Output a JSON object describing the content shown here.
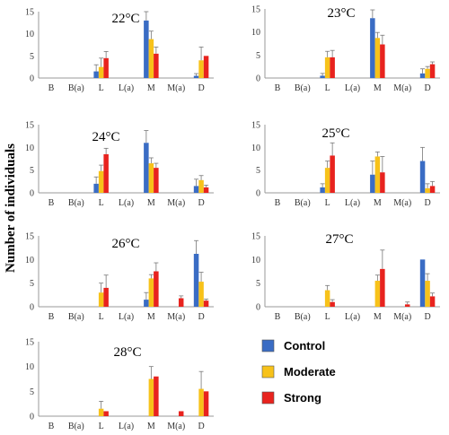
{
  "y_axis_label": "Number of individuals",
  "colors": {
    "Control": "#3a6cc4",
    "Moderate": "#f7c21a",
    "Strong": "#e8231e"
  },
  "chart_data": [
    {
      "type": "bar",
      "title": "22°C",
      "categories": [
        "B",
        "B(a)",
        "L",
        "L(a)",
        "M",
        "M(a)",
        "D"
      ],
      "y_ticks": [
        0,
        5,
        10,
        15
      ],
      "ylim": [
        0,
        15
      ],
      "series": [
        {
          "name": "Control",
          "values": [
            0,
            0,
            1.5,
            0,
            13,
            0,
            0.5
          ],
          "errors": [
            0,
            0,
            1.5,
            0,
            2,
            0,
            0.5
          ]
        },
        {
          "name": "Moderate",
          "values": [
            0,
            0,
            2.5,
            0,
            8.8,
            0,
            4
          ],
          "errors": [
            0,
            0,
            2,
            0,
            1.8,
            0,
            3
          ]
        },
        {
          "name": "Strong",
          "values": [
            0,
            0,
            4.5,
            0,
            5.5,
            0,
            5
          ],
          "errors": [
            0,
            0,
            1.5,
            0,
            1.5,
            0,
            0
          ]
        }
      ]
    },
    {
      "type": "bar",
      "title": "23°C",
      "categories": [
        "B",
        "B(a)",
        "L",
        "L(a)",
        "M",
        "M(a)",
        "D"
      ],
      "y_ticks": [
        0,
        5,
        10,
        15
      ],
      "ylim": [
        0,
        15
      ],
      "series": [
        {
          "name": "Control",
          "values": [
            0,
            0,
            0.5,
            0,
            13,
            0,
            1
          ],
          "errors": [
            0,
            0,
            0.5,
            0,
            1.8,
            0,
            1
          ]
        },
        {
          "name": "Moderate",
          "values": [
            0,
            0,
            4.5,
            0,
            8.7,
            0,
            2
          ],
          "errors": [
            0,
            0,
            1.3,
            0,
            1.2,
            0,
            0.5
          ]
        },
        {
          "name": "Strong",
          "values": [
            0,
            0,
            4.5,
            0,
            7.3,
            0,
            3
          ],
          "errors": [
            0,
            0,
            1.5,
            0,
            2,
            0,
            0.5
          ]
        }
      ]
    },
    {
      "type": "bar",
      "title": "24°C",
      "categories": [
        "B",
        "B(a)",
        "L",
        "L(a)",
        "M",
        "M(a)",
        "D"
      ],
      "y_ticks": [
        0,
        5,
        10,
        15
      ],
      "ylim": [
        0,
        15
      ],
      "series": [
        {
          "name": "Control",
          "values": [
            0,
            0,
            2,
            0,
            11,
            0,
            1.5
          ],
          "errors": [
            0,
            0,
            1.5,
            0,
            2.7,
            0,
            1.5
          ]
        },
        {
          "name": "Moderate",
          "values": [
            0,
            0,
            4.8,
            0,
            6.5,
            0,
            2.8
          ],
          "errors": [
            0,
            0,
            1.3,
            0,
            1.2,
            0,
            1
          ]
        },
        {
          "name": "Strong",
          "values": [
            0,
            0,
            8.5,
            0,
            5.5,
            0,
            1.2
          ],
          "errors": [
            0,
            0,
            1.3,
            0,
            1,
            0,
            0.5
          ]
        }
      ]
    },
    {
      "type": "bar",
      "title": "25°C",
      "categories": [
        "B",
        "B(a)",
        "L",
        "L(a)",
        "M",
        "M(a)",
        "D"
      ],
      "y_ticks": [
        0,
        5,
        10,
        15
      ],
      "ylim": [
        0,
        15
      ],
      "series": [
        {
          "name": "Control",
          "values": [
            0,
            0,
            1.2,
            0,
            4,
            0,
            7
          ],
          "errors": [
            0,
            0,
            0.8,
            0,
            3,
            0,
            3
          ]
        },
        {
          "name": "Moderate",
          "values": [
            0,
            0,
            5.5,
            0,
            8,
            0,
            1
          ],
          "errors": [
            0,
            0,
            1.5,
            0,
            1,
            0,
            1
          ]
        },
        {
          "name": "Strong",
          "values": [
            0,
            0,
            8.2,
            0,
            4.5,
            0,
            1.5
          ],
          "errors": [
            0,
            0,
            2.8,
            0,
            3.5,
            0,
            1
          ]
        }
      ]
    },
    {
      "type": "bar",
      "title": "26°C",
      "categories": [
        "B",
        "B(a)",
        "L",
        "L(a)",
        "M",
        "M(a)",
        "D"
      ],
      "y_ticks": [
        0,
        5,
        10,
        15
      ],
      "ylim": [
        0,
        15
      ],
      "series": [
        {
          "name": "Control",
          "values": [
            0,
            0,
            0,
            0,
            1.5,
            0,
            11.2
          ],
          "errors": [
            0,
            0,
            0,
            0,
            1.5,
            0,
            2.8
          ]
        },
        {
          "name": "Moderate",
          "values": [
            0,
            0,
            3,
            0,
            6,
            0,
            5.3
          ],
          "errors": [
            0,
            0,
            2,
            0,
            0.8,
            0,
            2
          ]
        },
        {
          "name": "Strong",
          "values": [
            0,
            0,
            4,
            0,
            7.5,
            1.8,
            1.3
          ],
          "errors": [
            0,
            0,
            2.7,
            0,
            1.8,
            0.5,
            0.3
          ]
        }
      ]
    },
    {
      "type": "bar",
      "title": "27°C",
      "categories": [
        "B",
        "B(a)",
        "L",
        "L(a)",
        "M",
        "M(a)",
        "D"
      ],
      "y_ticks": [
        0,
        5,
        10,
        15
      ],
      "ylim": [
        0,
        15
      ],
      "series": [
        {
          "name": "Control",
          "values": [
            0,
            0,
            0,
            0,
            0,
            0,
            10
          ],
          "errors": [
            0,
            0,
            0,
            0,
            0,
            0,
            0
          ]
        },
        {
          "name": "Moderate",
          "values": [
            0,
            0,
            3.5,
            0,
            5.5,
            0,
            5.5
          ],
          "errors": [
            0,
            0,
            1,
            0,
            1.2,
            0,
            1.5
          ]
        },
        {
          "name": "Strong",
          "values": [
            0,
            0,
            1,
            0,
            8,
            0.5,
            2.2
          ],
          "errors": [
            0,
            0,
            0.5,
            0,
            4,
            0.5,
            0.7
          ]
        }
      ]
    },
    {
      "type": "bar",
      "title": "28°C",
      "categories": [
        "B",
        "B(a)",
        "L",
        "L(a)",
        "M",
        "M(a)",
        "D"
      ],
      "y_ticks": [
        0,
        5,
        10,
        15
      ],
      "ylim": [
        0,
        15
      ],
      "series": [
        {
          "name": "Control",
          "values": [
            0,
            0,
            0,
            0,
            0,
            0,
            0
          ],
          "errors": [
            0,
            0,
            0,
            0,
            0,
            0,
            0
          ]
        },
        {
          "name": "Moderate",
          "values": [
            0,
            0,
            1.5,
            0,
            7.5,
            0,
            5.5
          ],
          "errors": [
            0,
            0,
            1.5,
            0,
            2.5,
            0,
            3.5
          ]
        },
        {
          "name": "Strong",
          "values": [
            0,
            0,
            1,
            0,
            8,
            1,
            5
          ],
          "errors": [
            0,
            0,
            0,
            0,
            0,
            0,
            0
          ]
        }
      ]
    }
  ],
  "legend": [
    {
      "label": "Control",
      "color": "#3a6cc4"
    },
    {
      "label": "Moderate",
      "color": "#f7c21a"
    },
    {
      "label": "Strong",
      "color": "#e8231e"
    }
  ]
}
